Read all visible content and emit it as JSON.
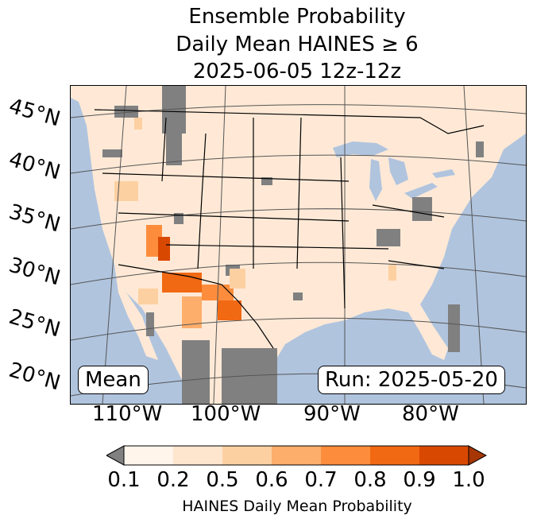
{
  "title": {
    "line1": "Ensemble Probability",
    "line2": "Daily Mean HAINES ≥ 6",
    "line3": "2025-06-05 12z-12z"
  },
  "map": {
    "region": "Continental United States",
    "ocean_color": "#b0c4de",
    "land_color": "#ffe9d6",
    "missing_color": "#808080",
    "lat_labels": [
      "45°N",
      "40°N",
      "35°N",
      "30°N",
      "25°N",
      "20°N"
    ],
    "lon_labels": [
      "110°W",
      "100°W",
      "90°W",
      "80°W"
    ]
  },
  "overlays": {
    "left_box": "Mean",
    "right_box": "Run: 2025-05-20"
  },
  "colorbar": {
    "ticks": [
      "0.1",
      "0.2",
      "0.5",
      "0.6",
      "0.7",
      "0.8",
      "0.9",
      "1.0"
    ],
    "label": "HAINES Daily Mean Probability",
    "under_color": "#808080",
    "colors": [
      "#fff5eb",
      "#fee6ce",
      "#fdd0a2",
      "#fdae6b",
      "#fd8d3c",
      "#f16913",
      "#d94801"
    ],
    "over_color": "#a63603"
  }
}
